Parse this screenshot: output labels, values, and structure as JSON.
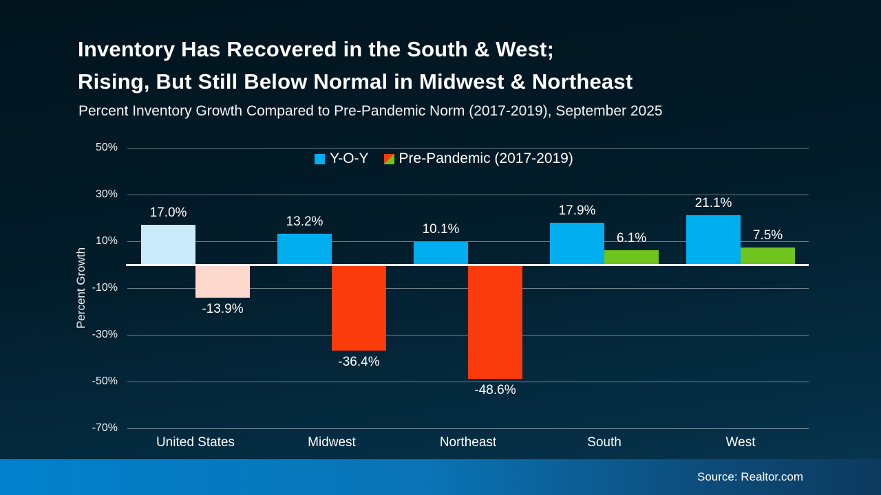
{
  "slide": {
    "title_line1": "Inventory Has Recovered in the South & West;",
    "title_line2": "Rising, But Still Below Normal in Midwest & Northeast",
    "subtitle": "Percent Inventory Growth Compared to Pre-Pandemic Norm (2017-2019), September 2025",
    "source": "Source: Realtor.com"
  },
  "colors": {
    "yoy_blue": "#00AEEF",
    "yoy_blue_light_us": "#C9EBFB",
    "prepandemic_negative_red": "#FB3B0C",
    "prepandemic_negative_light_us": "#FDD8CC",
    "prepandemic_positive_green": "#6FC41D",
    "footer_gradient_left": "#0281CC",
    "footer_gradient_right": "#0C3A5E",
    "background_top": "#01141E",
    "background_bottom": "#0A3A55"
  },
  "chart_data": {
    "type": "bar",
    "title": "Inventory Has Recovered in the South & West; Rising, But Still Below Normal in Midwest & Northeast",
    "subtitle": "Percent Inventory Growth Compared to Pre-Pandemic Norm (2017-2019), September 2025",
    "xlabel": "",
    "ylabel": "Percent Growth",
    "ylim": [
      -70,
      50
    ],
    "yticks": [
      50,
      30,
      10,
      -10,
      -30,
      -50,
      -70
    ],
    "ytick_labels": [
      "50%",
      "30%",
      "10%",
      "-10%",
      "-30%",
      "-50%",
      "-70%"
    ],
    "grid": true,
    "legend_position": "top-center",
    "categories": [
      "United States",
      "Midwest",
      "Northeast",
      "South",
      "West"
    ],
    "series": [
      {
        "name": "Y-O-Y",
        "values": [
          17.0,
          13.2,
          10.1,
          17.9,
          21.1
        ],
        "labels": [
          "17.0%",
          "13.2%",
          "10.1%",
          "17.9%",
          "21.1%"
        ],
        "colors": [
          "#C9EBFB",
          "#00AEEF",
          "#00AEEF",
          "#00AEEF",
          "#00AEEF"
        ]
      },
      {
        "name": "Pre-Pandemic (2017-2019)",
        "values": [
          -13.9,
          -36.4,
          -48.6,
          6.1,
          7.5
        ],
        "labels": [
          "-13.9%",
          "-36.4%",
          "-48.6%",
          "6.1%",
          "7.5%"
        ],
        "colors": [
          "#FDD8CC",
          "#FB3B0C",
          "#FB3B0C",
          "#6FC41D",
          "#6FC41D"
        ]
      }
    ],
    "legend": [
      {
        "label": "Y-O-Y",
        "swatch": [
          "#00AEEF"
        ]
      },
      {
        "label": "Pre-Pandemic (2017-2019)",
        "swatch": [
          "#FB3B0C",
          "#6FC41D"
        ]
      }
    ]
  }
}
